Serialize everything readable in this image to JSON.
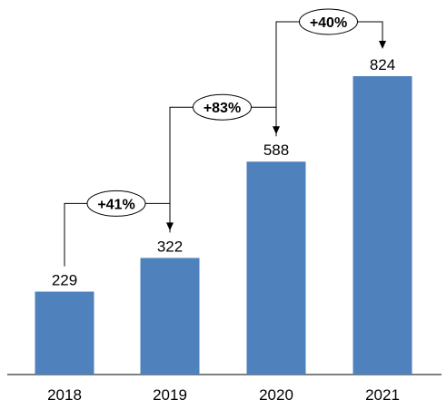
{
  "chart_data": {
    "type": "bar",
    "categories": [
      "2018",
      "2019",
      "2020",
      "2021"
    ],
    "values": [
      229,
      322,
      588,
      824
    ],
    "value_labels": [
      "229",
      "322",
      "588",
      "824"
    ],
    "growth_annotations": [
      {
        "from": "2018",
        "to": "2019",
        "label": "+41%"
      },
      {
        "from": "2019",
        "to": "2020",
        "label": "+83%"
      },
      {
        "from": "2020",
        "to": "2021",
        "label": "+40%"
      }
    ],
    "ylim": [
      0,
      824
    ],
    "grid": false,
    "legend": "none",
    "bar_color": "#4f81bd",
    "axis_color": "#000000"
  }
}
